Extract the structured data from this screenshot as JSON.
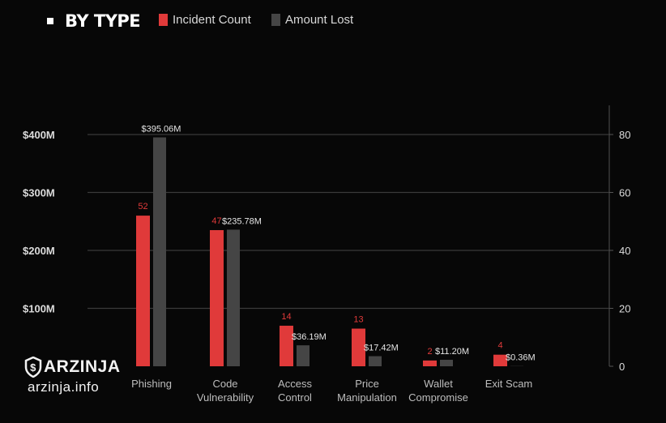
{
  "header": {
    "title": "BY TYPE",
    "legend": [
      {
        "label": "Incident Count",
        "color": "#e03a3a"
      },
      {
        "label": "Amount Lost",
        "color": "#454545"
      }
    ]
  },
  "watermark": {
    "brand": "ARZINJA",
    "site": "arzinja.info"
  },
  "chart_data": {
    "type": "bar",
    "title": "BY TYPE",
    "categories": [
      [
        "Phishing"
      ],
      [
        "Code",
        "Vulnerability"
      ],
      [
        "Access",
        "Control"
      ],
      [
        "Price",
        "Manipulation"
      ],
      [
        "Wallet",
        "Compromise"
      ],
      [
        "Exit Scam"
      ]
    ],
    "series": [
      {
        "name": "Incident Count",
        "axis": "right",
        "color": "#e03a3a",
        "values": [
          52,
          47,
          14,
          13,
          2,
          4
        ],
        "labels": [
          "52",
          "47",
          "14",
          "13",
          "2",
          "4"
        ]
      },
      {
        "name": "Amount Lost",
        "axis": "left",
        "color": "#454545",
        "values": [
          395.06,
          235.78,
          36.19,
          17.42,
          11.2,
          0.36
        ],
        "labels": [
          "$395.06M",
          "$235.78M",
          "$36.19M",
          "$17.42M",
          "$11.20M",
          "$0.36M"
        ]
      }
    ],
    "y_left": {
      "ticks": [
        100,
        200,
        300,
        400
      ],
      "tick_labels": [
        "$100M",
        "$200M",
        "$300M",
        "$400M"
      ],
      "ylim": [
        0,
        400
      ]
    },
    "y_right": {
      "ticks": [
        0,
        20,
        40,
        60,
        80
      ],
      "tick_labels": [
        "0",
        "20",
        "40",
        "60",
        "80"
      ],
      "ylim": [
        0,
        80
      ]
    },
    "grid": true,
    "legend_position": "top"
  }
}
